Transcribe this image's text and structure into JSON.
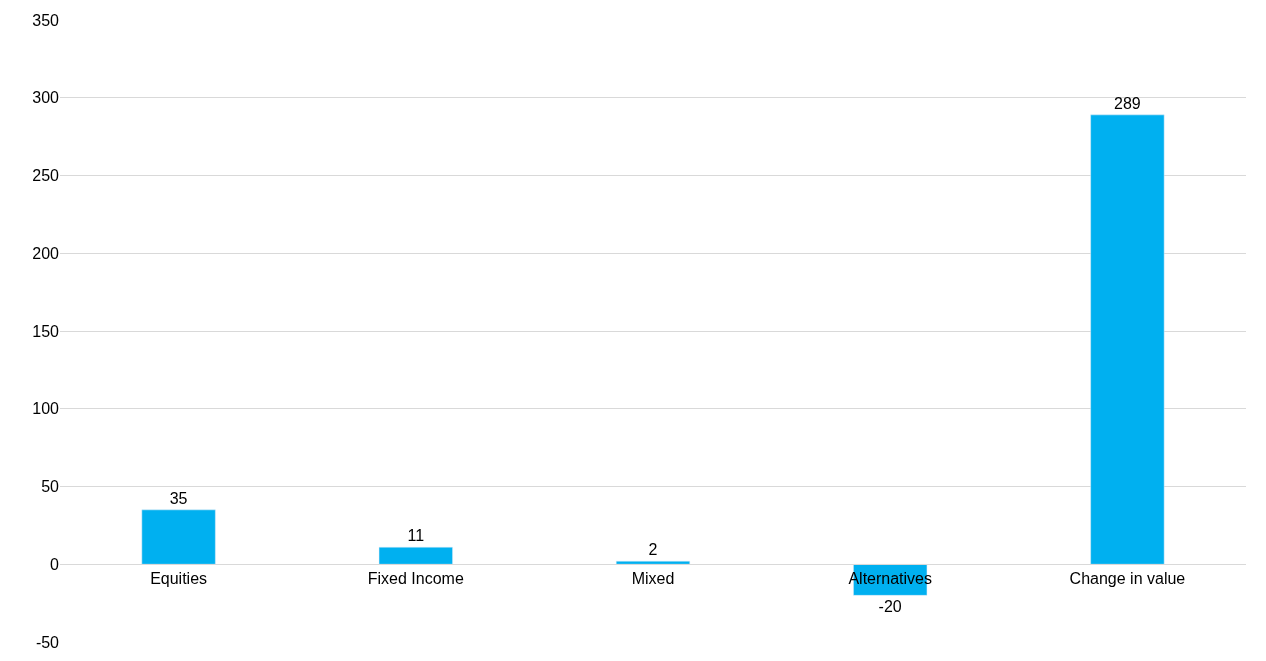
{
  "chart_data": {
    "type": "bar",
    "categories": [
      "Equities",
      "Fixed Income",
      "Mixed",
      "Alternatives",
      "Change in value"
    ],
    "values": [
      35,
      11,
      2,
      -20,
      289
    ],
    "color": "#00b0f0",
    "ylim": [
      -50,
      350
    ],
    "yticks": [
      -50,
      0,
      50,
      100,
      150,
      200,
      250,
      300,
      350
    ],
    "grid": "y",
    "data_labels": true,
    "legend": false
  }
}
